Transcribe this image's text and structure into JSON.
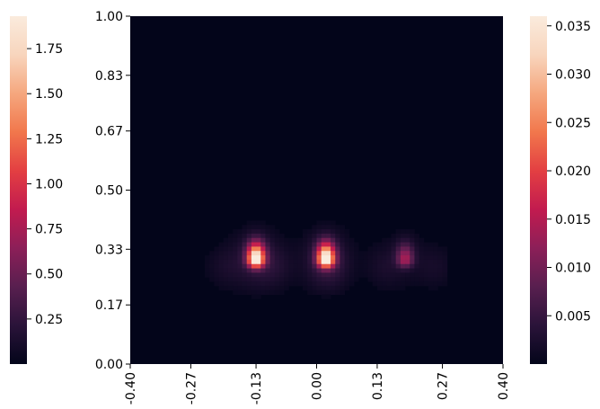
{
  "chart_data": {
    "type": "heatmap",
    "title": "",
    "xlabel": "",
    "ylabel": "",
    "x_ticks": [
      "-0.40",
      "-0.27",
      "-0.13",
      "0.00",
      "0.13",
      "0.27",
      "0.40"
    ],
    "x_tick_values": [
      -0.4,
      -0.27,
      -0.13,
      0.0,
      0.13,
      0.27,
      0.4
    ],
    "y_ticks": [
      "0.00",
      "0.17",
      "0.33",
      "0.50",
      "0.67",
      "0.83",
      "1.00"
    ],
    "y_tick_values": [
      0.0,
      0.17,
      0.33,
      0.5,
      0.67,
      0.83,
      1.0
    ],
    "xlim": [
      -0.4,
      0.4
    ],
    "ylim": [
      0.0,
      1.0
    ],
    "colormap": "rocket",
    "colormap_stops": [
      "#03051a",
      "#2a1339",
      "#581f4f",
      "#8c1f58",
      "#c21b4f",
      "#e33f42",
      "#f1774c",
      "#f5a77e",
      "#f8d5bd",
      "#faebdd"
    ],
    "left_colorbar": {
      "range": [
        0.0,
        1.93
      ],
      "ticks": [
        "0.25",
        "0.50",
        "0.75",
        "1.00",
        "1.25",
        "1.50",
        "1.75"
      ],
      "tick_values": [
        0.25,
        0.5,
        0.75,
        1.0,
        1.25,
        1.5,
        1.75
      ]
    },
    "right_colorbar": {
      "range": [
        0.0,
        0.036
      ],
      "ticks": [
        "0.005",
        "0.010",
        "0.015",
        "0.020",
        "0.025",
        "0.030",
        "0.035"
      ],
      "tick_values": [
        0.005,
        0.01,
        0.015,
        0.02,
        0.025,
        0.03,
        0.035
      ]
    },
    "hotspots": [
      {
        "x": -0.13,
        "y": 0.3,
        "peak": 1.0
      },
      {
        "x": 0.02,
        "y": 0.3,
        "peak": 1.0
      },
      {
        "x": 0.19,
        "y": 0.3,
        "peak": 0.35
      }
    ]
  }
}
